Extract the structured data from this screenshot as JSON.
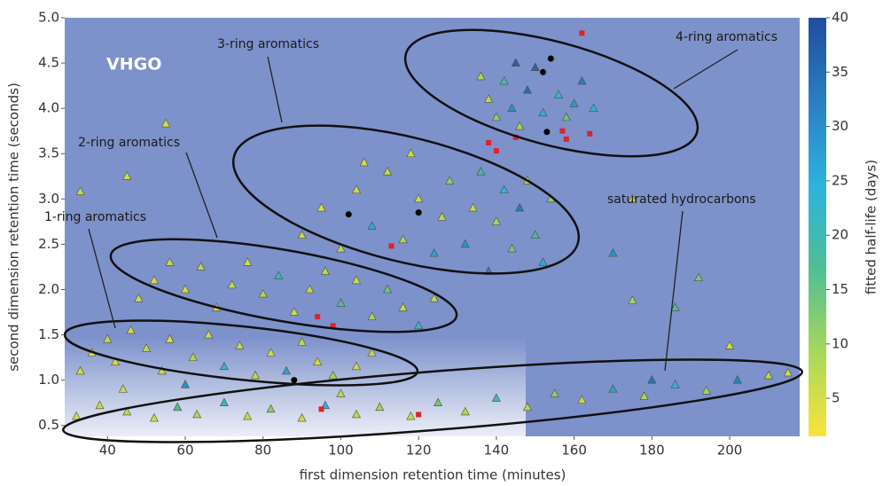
{
  "chart_data": {
    "type": "scatter",
    "x_label": "first dimension retention time (minutes)",
    "y_label": "second dimension retention time (seconds)",
    "xlim": [
      29,
      218
    ],
    "ylim": [
      0.38,
      5.0
    ],
    "xticks": [
      40,
      60,
      80,
      100,
      120,
      140,
      160,
      180,
      200
    ],
    "yticks": [
      0.5,
      {
        "value": 1,
        "label": "1.0"
      },
      1.5,
      {
        "value": 2,
        "label": "2.0"
      },
      2.5,
      {
        "value": 3,
        "label": "3.0"
      },
      3.5,
      {
        "value": 4,
        "label": "4.0"
      },
      4.5,
      {
        "value": 5,
        "label": "5.0"
      }
    ],
    "annotations": [
      "VHGO",
      "1-ring aromatics",
      "2-ring aromatics",
      "3-ring aromatics",
      "4-ring aromatics",
      "saturated hydrocarbons"
    ],
    "colorbar": {
      "label": "fitted half-life (days)",
      "lim": [
        1.5,
        40
      ],
      "ticks": [
        5,
        10,
        15,
        20,
        25,
        30,
        35,
        40
      ],
      "colors": [
        "#f9e43a",
        "#a8d85a",
        "#4fbf94",
        "#2bb3de",
        "#2a7fc4",
        "#1f4d9e"
      ]
    },
    "series": [
      {
        "marker": "triangle",
        "x": [
          32,
          38,
          45,
          52,
          58,
          63,
          70,
          76,
          82,
          90,
          96,
          104,
          110,
          118,
          125,
          132,
          140,
          148,
          155,
          162,
          170,
          178,
          186,
          194,
          202,
          210,
          215,
          44,
          60,
          100,
          33,
          36,
          40,
          42,
          46,
          50,
          54,
          56,
          62,
          66,
          70,
          74,
          78,
          82,
          86,
          90,
          94,
          98,
          104,
          108,
          48,
          52,
          56,
          60,
          64,
          68,
          72,
          76,
          80,
          84,
          88,
          92,
          96,
          100,
          104,
          108,
          112,
          116,
          120,
          124,
          90,
          95,
          100,
          104,
          108,
          112,
          116,
          120,
          124,
          126,
          128,
          132,
          134,
          136,
          138,
          140,
          142,
          144,
          146,
          148,
          150,
          152,
          154,
          118,
          106,
          138,
          140,
          142,
          144,
          146,
          148,
          150,
          152,
          156,
          158,
          160,
          162,
          165,
          145,
          136,
          55,
          33,
          45,
          175,
          175,
          192,
          186,
          170,
          200,
          180
        ],
        "y": [
          0.6,
          0.72,
          0.65,
          0.58,
          0.7,
          0.62,
          0.75,
          0.6,
          0.68,
          0.58,
          0.72,
          0.62,
          0.7,
          0.6,
          0.75,
          0.65,
          0.8,
          0.7,
          0.85,
          0.78,
          0.9,
          0.82,
          0.95,
          0.88,
          1.0,
          1.05,
          1.08,
          0.9,
          0.95,
          0.85,
          1.1,
          1.3,
          1.45,
          1.2,
          1.55,
          1.35,
          1.1,
          1.45,
          1.25,
          1.5,
          1.15,
          1.38,
          1.05,
          1.3,
          1.1,
          1.42,
          1.2,
          1.05,
          1.15,
          1.3,
          1.9,
          2.1,
          2.3,
          2.0,
          2.25,
          1.8,
          2.05,
          2.3,
          1.95,
          2.15,
          1.75,
          2.0,
          2.2,
          1.85,
          2.1,
          1.7,
          2.0,
          1.8,
          1.6,
          1.9,
          2.6,
          2.9,
          2.45,
          3.1,
          2.7,
          3.3,
          2.55,
          3.0,
          2.4,
          2.8,
          3.2,
          2.5,
          2.9,
          3.3,
          2.2,
          2.75,
          3.1,
          2.45,
          2.9,
          3.2,
          2.6,
          2.3,
          3.0,
          3.5,
          3.4,
          4.1,
          3.9,
          4.3,
          4.0,
          3.8,
          4.2,
          4.45,
          3.95,
          4.15,
          3.9,
          4.05,
          4.3,
          4.0,
          4.5,
          4.35,
          3.83,
          3.08,
          3.25,
          3.0,
          1.88,
          2.13,
          1.8,
          2.4,
          1.38,
          1.0
        ],
        "half_life": [
          6,
          7,
          8,
          6,
          18,
          9,
          22,
          7,
          12,
          6,
          25,
          8,
          10,
          7,
          14,
          9,
          20,
          8,
          12,
          7,
          28,
          9,
          25,
          10,
          32,
          8,
          6,
          7,
          30,
          8,
          6,
          5,
          7,
          5,
          6,
          8,
          7,
          5,
          9,
          6,
          24,
          7,
          8,
          6,
          27,
          8,
          5,
          10,
          6,
          7,
          6,
          5,
          7,
          6,
          8,
          5,
          7,
          6,
          9,
          22,
          6,
          7,
          8,
          18,
          6,
          9,
          15,
          7,
          24,
          8,
          7,
          5,
          8,
          6,
          26,
          7,
          9,
          6,
          28,
          8,
          12,
          30,
          7,
          20,
          32,
          10,
          24,
          14,
          33,
          8,
          20,
          26,
          12,
          6,
          5,
          8,
          12,
          20,
          30,
          10,
          35,
          36,
          25,
          22,
          15,
          28,
          33,
          24,
          37,
          9,
          5,
          7,
          6,
          6,
          10,
          14,
          18,
          30,
          6,
          34
        ]
      },
      {
        "marker": "square",
        "color": "#e3202b",
        "x": [
          162,
          138,
          140,
          145,
          157,
          158,
          164,
          113,
          98,
          94,
          120,
          95
        ],
        "y": [
          4.83,
          3.62,
          3.53,
          3.68,
          3.75,
          3.66,
          3.72,
          2.48,
          1.6,
          1.7,
          0.62,
          0.68
        ]
      },
      {
        "marker": "circle",
        "color": "#000000",
        "x": [
          154,
          152,
          153,
          102,
          120,
          88
        ],
        "y": [
          4.55,
          4.4,
          3.74,
          2.83,
          2.85,
          1.0
        ]
      }
    ]
  }
}
